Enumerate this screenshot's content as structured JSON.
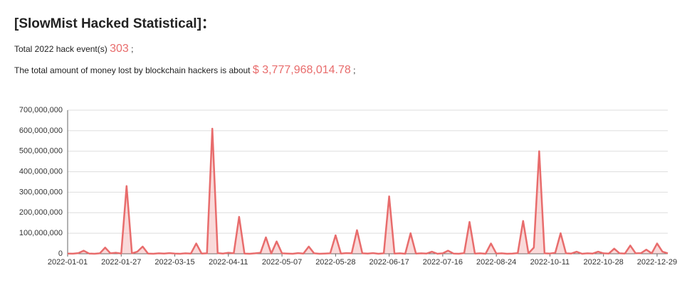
{
  "header": {
    "title": "[SlowMist Hacked Statistical]：",
    "events_label": "Total 2022 hack event(s)",
    "events_value": "303",
    "events_end": ";",
    "money_label": "The total amount of money lost by blockchain hackers is about",
    "money_value": "$ 3,777,968,014.78",
    "money_end": ";"
  },
  "chart_data": {
    "type": "line",
    "color": "#e86c6c",
    "grid": true,
    "categories": [
      "2022-01-01",
      null,
      null,
      null,
      null,
      null,
      null,
      null,
      null,
      null,
      "2022-01-27",
      null,
      null,
      null,
      null,
      null,
      null,
      null,
      null,
      null,
      "2022-03-15",
      null,
      null,
      null,
      null,
      null,
      null,
      null,
      null,
      null,
      "2022-04-11",
      null,
      null,
      null,
      null,
      null,
      null,
      null,
      null,
      null,
      "2022-05-07",
      null,
      null,
      null,
      null,
      null,
      null,
      null,
      null,
      null,
      "2022-05-28",
      null,
      null,
      null,
      null,
      null,
      null,
      null,
      null,
      null,
      "2022-06-17",
      null,
      null,
      null,
      null,
      null,
      null,
      null,
      null,
      null,
      "2022-07-16",
      null,
      null,
      null,
      null,
      null,
      null,
      null,
      null,
      null,
      "2022-08-24",
      null,
      null,
      null,
      null,
      null,
      null,
      null,
      null,
      null,
      "2022-10-11",
      null,
      null,
      null,
      null,
      null,
      null,
      null,
      null,
      null,
      "2022-10-28",
      null,
      null,
      null,
      null,
      null,
      null,
      null,
      null,
      null,
      "2022-12-29",
      null,
      null
    ],
    "values": [
      1000000,
      500000,
      3000000,
      15000000,
      1000000,
      0,
      2000000,
      30000000,
      2000000,
      5000000,
      1000000,
      330000000,
      2000000,
      10000000,
      35000000,
      1000000,
      0,
      2000000,
      1000000,
      3000000,
      1000000,
      0,
      2000000,
      1000000,
      50000000,
      1000000,
      2000000,
      610000000,
      3000000,
      1000000,
      5000000,
      2000000,
      180000000,
      1000000,
      0,
      2000000,
      5000000,
      80000000,
      1000000,
      60000000,
      2000000,
      1000000,
      0,
      3000000,
      1000000,
      35000000,
      2000000,
      0,
      1000000,
      2000000,
      90000000,
      1000000,
      3000000,
      2000000,
      115000000,
      2000000,
      1000000,
      3000000,
      0,
      2000000,
      280000000,
      1000000,
      2000000,
      0,
      100000000,
      1000000,
      2000000,
      1000000,
      10000000,
      0,
      2000000,
      15000000,
      1000000,
      0,
      3000000,
      155000000,
      1000000,
      2000000,
      0,
      50000000,
      1000000,
      2000000,
      0,
      1000000,
      3000000,
      160000000,
      2000000,
      30000000,
      500000000,
      2000000,
      1000000,
      5000000,
      100000000,
      2000000,
      1000000,
      10000000,
      0,
      2000000,
      1000000,
      10000000,
      2000000,
      1000000,
      25000000,
      2000000,
      1000000,
      40000000,
      2000000,
      3000000,
      20000000,
      2000000,
      50000000,
      10000000,
      2000000
    ],
    "ylim": [
      0,
      700000000
    ],
    "yticks": [
      0,
      {
        "value": 100000000,
        "label": "100,000,000"
      },
      {
        "value": 200000000,
        "label": "200,000,000"
      },
      {
        "value": 300000000,
        "label": "300,000,000"
      },
      {
        "value": 400000000,
        "label": "400,000,000"
      },
      {
        "value": 500000000,
        "label": "500,000,000"
      },
      {
        "value": 600000000,
        "label": "600,000,000"
      },
      {
        "value": 700000000,
        "label": "700,000,000"
      }
    ]
  }
}
